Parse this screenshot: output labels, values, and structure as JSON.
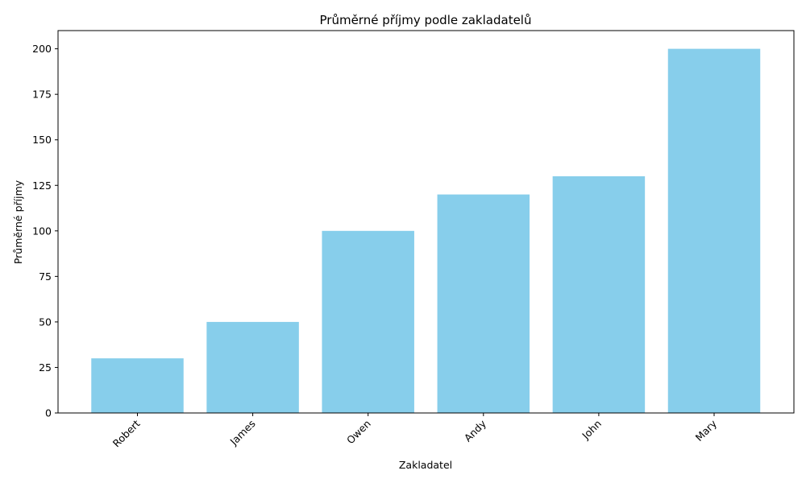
{
  "chart_data": {
    "type": "bar",
    "title": "Průměrné příjmy podle zakladatelů",
    "xlabel": "Zakladatel",
    "ylabel": "Průměrné příjmy",
    "categories": [
      "Robert",
      "James",
      "Owen",
      "Andy",
      "John",
      "Mary"
    ],
    "values": [
      30,
      50,
      100,
      120,
      130,
      200
    ],
    "ylim": [
      0,
      210
    ],
    "yticks": [
      "0",
      "25",
      "50",
      "75",
      "100",
      "125",
      "150",
      "175",
      "200"
    ],
    "bar_color": "#87CEEB",
    "grid": false,
    "legend": "none",
    "xtick_rotation": "45 degrees"
  }
}
